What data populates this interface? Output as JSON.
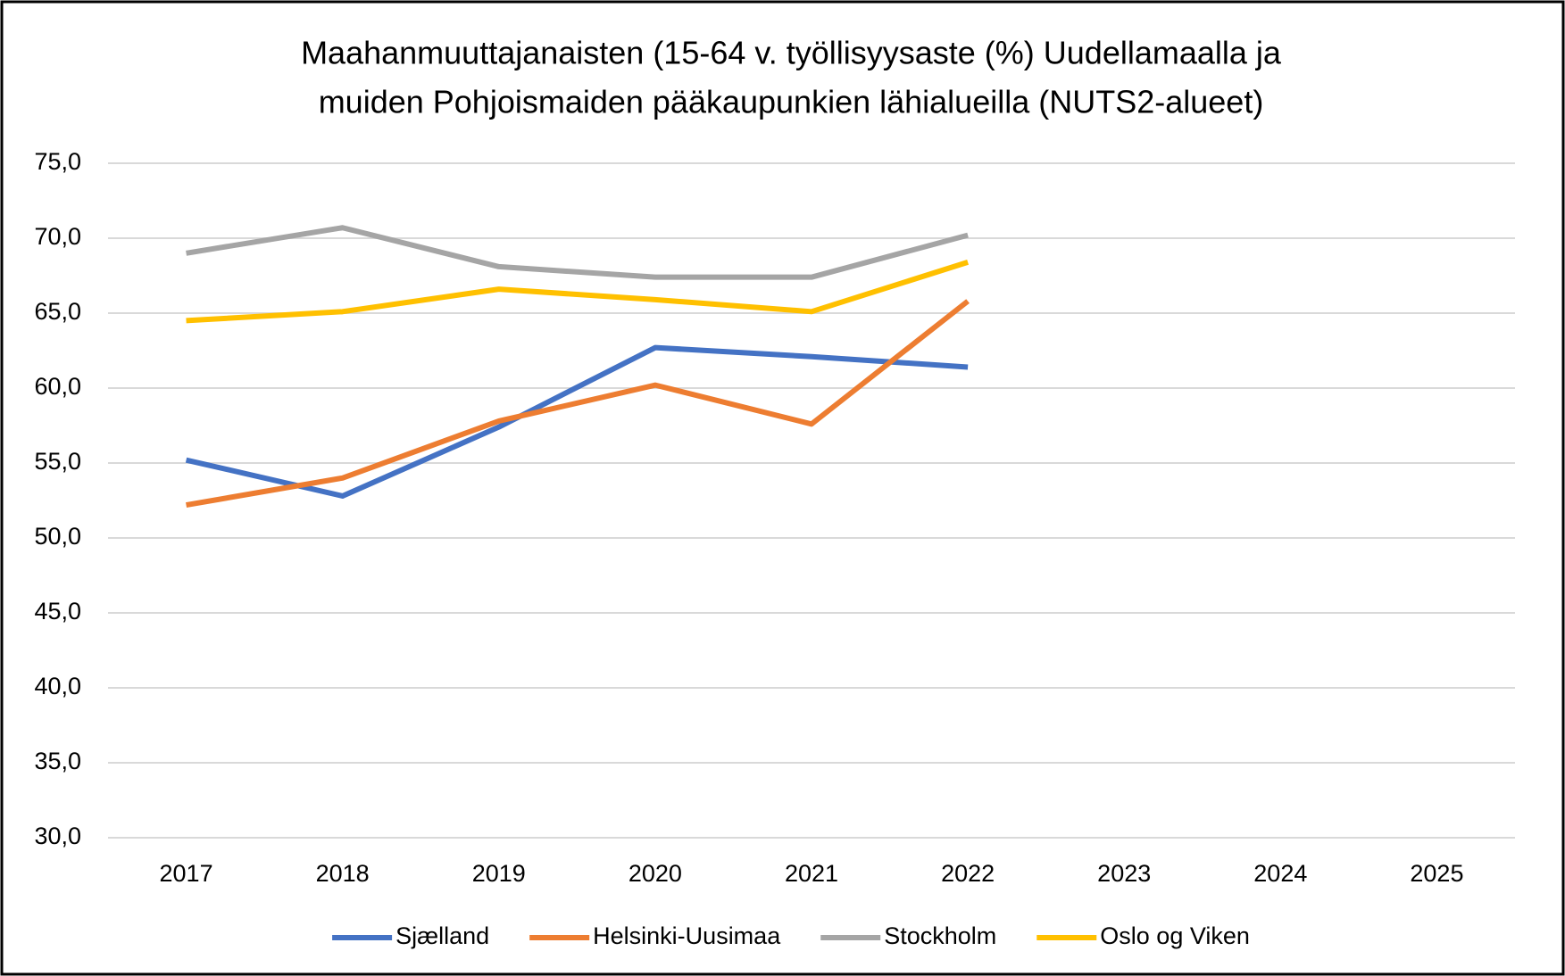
{
  "chart_data": {
    "type": "line",
    "title": [
      "Maahanmuuttajanaisten (15-64 v. työllisyysaste (%) Uudellamaalla ja",
      "muiden Pohjoismaiden pääkaupunkien lähialueilla (NUTS2-alueet)"
    ],
    "categories": [
      "2017",
      "2018",
      "2019",
      "2020",
      "2021",
      "2022",
      "2023",
      "2024",
      "2025"
    ],
    "series": [
      {
        "name": "Sjælland",
        "color": "#4472c4",
        "values": [
          55.2,
          52.8,
          57.4,
          62.7,
          62.1,
          61.4,
          null,
          null,
          null
        ]
      },
      {
        "name": "Helsinki-Uusimaa",
        "color": "#ed7d31",
        "values": [
          52.2,
          54.0,
          57.8,
          60.2,
          57.6,
          65.8,
          null,
          null,
          null
        ]
      },
      {
        "name": "Stockholm",
        "color": "#a5a5a5",
        "values": [
          69.0,
          70.7,
          68.1,
          67.4,
          67.4,
          70.2,
          null,
          null,
          null
        ]
      },
      {
        "name": "Oslo og Viken",
        "color": "#ffc000",
        "values": [
          64.5,
          65.1,
          66.6,
          65.9,
          65.1,
          68.4,
          null,
          null,
          null
        ]
      }
    ],
    "ylim": [
      30,
      75
    ],
    "yticks": [
      {
        "value": 30,
        "label": "30,0"
      },
      {
        "value": 35,
        "label": "35,0"
      },
      {
        "value": 40,
        "label": "40,0"
      },
      {
        "value": 45,
        "label": "45,0"
      },
      {
        "value": 50,
        "label": "50,0"
      },
      {
        "value": 55,
        "label": "55,0"
      },
      {
        "value": 60,
        "label": "60,0"
      },
      {
        "value": 65,
        "label": "65,0"
      },
      {
        "value": 70,
        "label": "70,0"
      },
      {
        "value": 75,
        "label": "75,0"
      }
    ],
    "grid": true,
    "legend": "bottom"
  }
}
